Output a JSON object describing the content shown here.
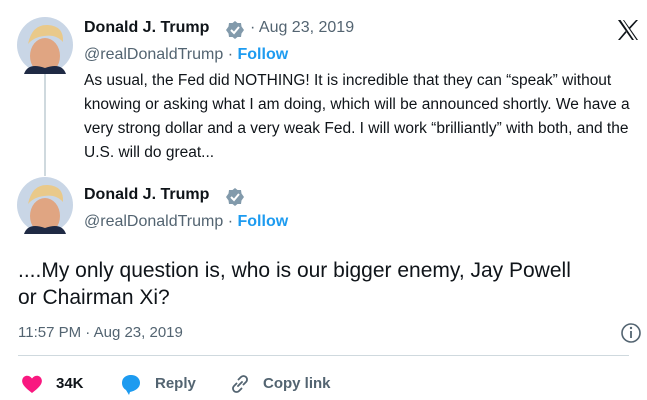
{
  "separator": "·",
  "quoted": {
    "author": "Donald J. Trump",
    "date": "Aug 23, 2019",
    "handle": "@realDonaldTrump",
    "follow": "Follow",
    "text": "As usual, the Fed did NOTHING! It is incredible that they can “speak” without knowing or asking what I am doing, which will be announced shortly. We have a very strong dollar and a very weak Fed. I will work “brilliantly” with both, and the U.S. will do great..."
  },
  "main": {
    "author": "Donald J. Trump",
    "handle": "@realDonaldTrump",
    "follow": "Follow",
    "text": "....My only question is, who is our bigger enemy, Jay Powell or Chairman Xi?",
    "time": "11:57 PM",
    "date": "Aug 23, 2019",
    "likes": "34K",
    "reply": "Reply",
    "copy_link": "Copy link"
  }
}
